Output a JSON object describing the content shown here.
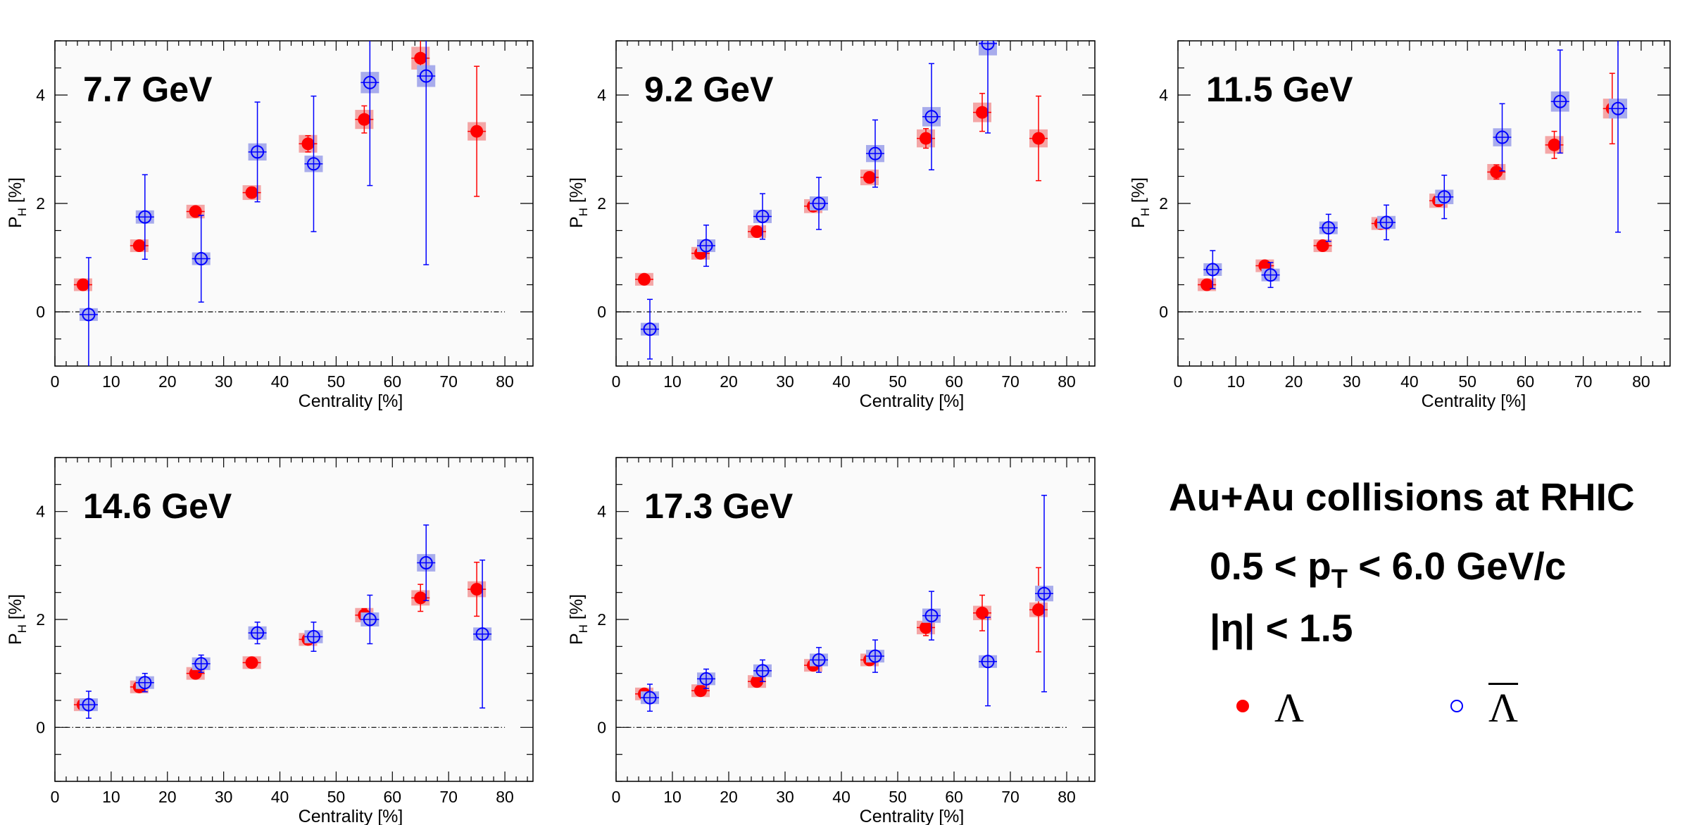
{
  "figure": {
    "title": "Au+Au collisions at RHIC",
    "pt_cut": {
      "prefix": "0.5 < p",
      "sub": "T",
      "suffix": " < 6.0 GeV/c"
    },
    "eta_cut": "|η| < 1.5",
    "legend": [
      {
        "label": "Λ",
        "style": "filled",
        "color": "#ff0000",
        "overline": false
      },
      {
        "label": "Λ",
        "style": "open",
        "color": "#0000ff",
        "overline": true
      }
    ]
  },
  "colors": {
    "lambda": "#ff0000",
    "lambda_sys": "#f4a6a6",
    "antilambda": "#0000ff",
    "antilambda_sys": "#a8acec",
    "frame_bg": "#fafafa"
  },
  "chart_data": [
    {
      "type": "scatter",
      "title": "7.7 GeV",
      "xlabel": "Centrality [%]",
      "ylabel": {
        "main": "P",
        "sub": "H",
        "unit": " [%]"
      },
      "xlim": [
        0,
        85
      ],
      "ylim": [
        -1,
        5
      ],
      "xticks": [
        0,
        10,
        20,
        30,
        40,
        50,
        60,
        70,
        80
      ],
      "yticks": [
        0,
        2,
        4
      ],
      "series": [
        {
          "name": "Λ",
          "marker": "filled",
          "x": [
            5,
            15,
            25,
            35,
            45,
            55,
            65,
            75
          ],
          "y": [
            0.5,
            1.22,
            1.85,
            2.2,
            3.1,
            3.55,
            4.68,
            3.33
          ],
          "err": [
            0.1,
            0.08,
            0.08,
            0.1,
            0.15,
            0.25,
            0.45,
            1.2
          ]
        },
        {
          "name": "Λ̄",
          "marker": "open",
          "x": [
            6,
            16,
            26,
            36,
            46,
            56,
            66,
            76
          ],
          "y": [
            -0.05,
            1.75,
            0.98,
            2.95,
            2.73,
            4.23,
            4.35,
            null
          ],
          "err": [
            1.05,
            0.78,
            0.8,
            0.92,
            1.25,
            1.9,
            3.48,
            null
          ]
        }
      ]
    },
    {
      "type": "scatter",
      "title": "9.2 GeV",
      "xlabel": "Centrality [%]",
      "ylabel": {
        "main": "P",
        "sub": "H",
        "unit": " [%]"
      },
      "xlim": [
        0,
        85
      ],
      "ylim": [
        -1,
        5
      ],
      "xticks": [
        0,
        10,
        20,
        30,
        40,
        50,
        60,
        70,
        80
      ],
      "yticks": [
        0,
        2,
        4
      ],
      "series": [
        {
          "name": "Λ",
          "marker": "filled",
          "x": [
            5,
            15,
            25,
            35,
            45,
            55,
            65,
            75
          ],
          "y": [
            0.6,
            1.08,
            1.48,
            1.95,
            2.48,
            3.2,
            3.68,
            3.2
          ],
          "err": [
            0.06,
            0.07,
            0.08,
            0.08,
            0.1,
            0.18,
            0.35,
            0.78
          ]
        },
        {
          "name": "Λ̄",
          "marker": "open",
          "x": [
            6,
            16,
            26,
            36,
            46,
            56,
            66,
            76
          ],
          "y": [
            -0.32,
            1.22,
            1.76,
            2.0,
            2.92,
            3.6,
            4.95,
            null
          ],
          "err": [
            0.55,
            0.38,
            0.42,
            0.48,
            0.62,
            0.98,
            1.65,
            null
          ]
        }
      ]
    },
    {
      "type": "scatter",
      "title": "11.5 GeV",
      "xlabel": "Centrality [%]",
      "ylabel": {
        "main": "P",
        "sub": "H",
        "unit": " [%]"
      },
      "xlim": [
        0,
        85
      ],
      "ylim": [
        -1,
        5
      ],
      "xticks": [
        0,
        10,
        20,
        30,
        40,
        50,
        60,
        70,
        80
      ],
      "yticks": [
        0,
        2,
        4
      ],
      "series": [
        {
          "name": "Λ",
          "marker": "filled",
          "x": [
            5,
            15,
            25,
            35,
            45,
            55,
            65,
            75
          ],
          "y": [
            0.5,
            0.85,
            1.22,
            1.63,
            2.05,
            2.58,
            3.08,
            3.75
          ],
          "err": [
            0.08,
            0.07,
            0.07,
            0.08,
            0.1,
            0.13,
            0.25,
            0.65
          ]
        },
        {
          "name": "Λ̄",
          "marker": "open",
          "x": [
            6,
            16,
            26,
            36,
            46,
            56,
            66,
            76
          ],
          "y": [
            0.78,
            0.68,
            1.55,
            1.65,
            2.12,
            3.22,
            3.88,
            3.75
          ],
          "err": [
            0.35,
            0.23,
            0.25,
            0.32,
            0.4,
            0.62,
            0.95,
            2.28
          ]
        }
      ]
    },
    {
      "type": "scatter",
      "title": "14.6 GeV",
      "xlabel": "Centrality [%]",
      "ylabel": {
        "main": "P",
        "sub": "H",
        "unit": " [%]"
      },
      "xlim": [
        0,
        85
      ],
      "ylim": [
        -1,
        5
      ],
      "xticks": [
        0,
        10,
        20,
        30,
        40,
        50,
        60,
        70,
        80
      ],
      "yticks": [
        0,
        2,
        4
      ],
      "series": [
        {
          "name": "Λ",
          "marker": "filled",
          "x": [
            5,
            15,
            25,
            35,
            45,
            55,
            65,
            75
          ],
          "y": [
            0.42,
            0.75,
            1.0,
            1.2,
            1.63,
            2.08,
            2.4,
            2.56
          ],
          "err": [
            0.04,
            0.05,
            0.06,
            0.06,
            0.08,
            0.12,
            0.25,
            0.5
          ]
        },
        {
          "name": "Λ̄",
          "marker": "open",
          "x": [
            6,
            16,
            26,
            36,
            46,
            56,
            66,
            76
          ],
          "y": [
            0.42,
            0.83,
            1.18,
            1.75,
            1.68,
            2.0,
            3.05,
            1.73
          ],
          "err": [
            0.25,
            0.17,
            0.16,
            0.2,
            0.27,
            0.45,
            0.7,
            1.37
          ]
        }
      ]
    },
    {
      "type": "scatter",
      "title": "17.3 GeV",
      "xlabel": "Centrality [%]",
      "ylabel": {
        "main": "P",
        "sub": "H",
        "unit": " [%]"
      },
      "xlim": [
        0,
        85
      ],
      "ylim": [
        -1,
        5
      ],
      "xticks": [
        0,
        10,
        20,
        30,
        40,
        50,
        60,
        70,
        80
      ],
      "yticks": [
        0,
        2,
        4
      ],
      "series": [
        {
          "name": "Λ",
          "marker": "filled",
          "x": [
            5,
            15,
            25,
            35,
            45,
            55,
            65,
            75
          ],
          "y": [
            0.62,
            0.68,
            0.85,
            1.15,
            1.25,
            1.85,
            2.12,
            2.18
          ],
          "err": [
            0.05,
            0.05,
            0.06,
            0.07,
            0.08,
            0.15,
            0.33,
            0.78
          ]
        },
        {
          "name": "Λ̄",
          "marker": "open",
          "x": [
            6,
            16,
            26,
            36,
            46,
            56,
            66,
            76
          ],
          "y": [
            0.55,
            0.9,
            1.05,
            1.25,
            1.32,
            2.07,
            1.22,
            2.48
          ],
          "err": [
            0.25,
            0.18,
            0.2,
            0.23,
            0.3,
            0.45,
            0.82,
            1.82
          ]
        }
      ]
    }
  ]
}
